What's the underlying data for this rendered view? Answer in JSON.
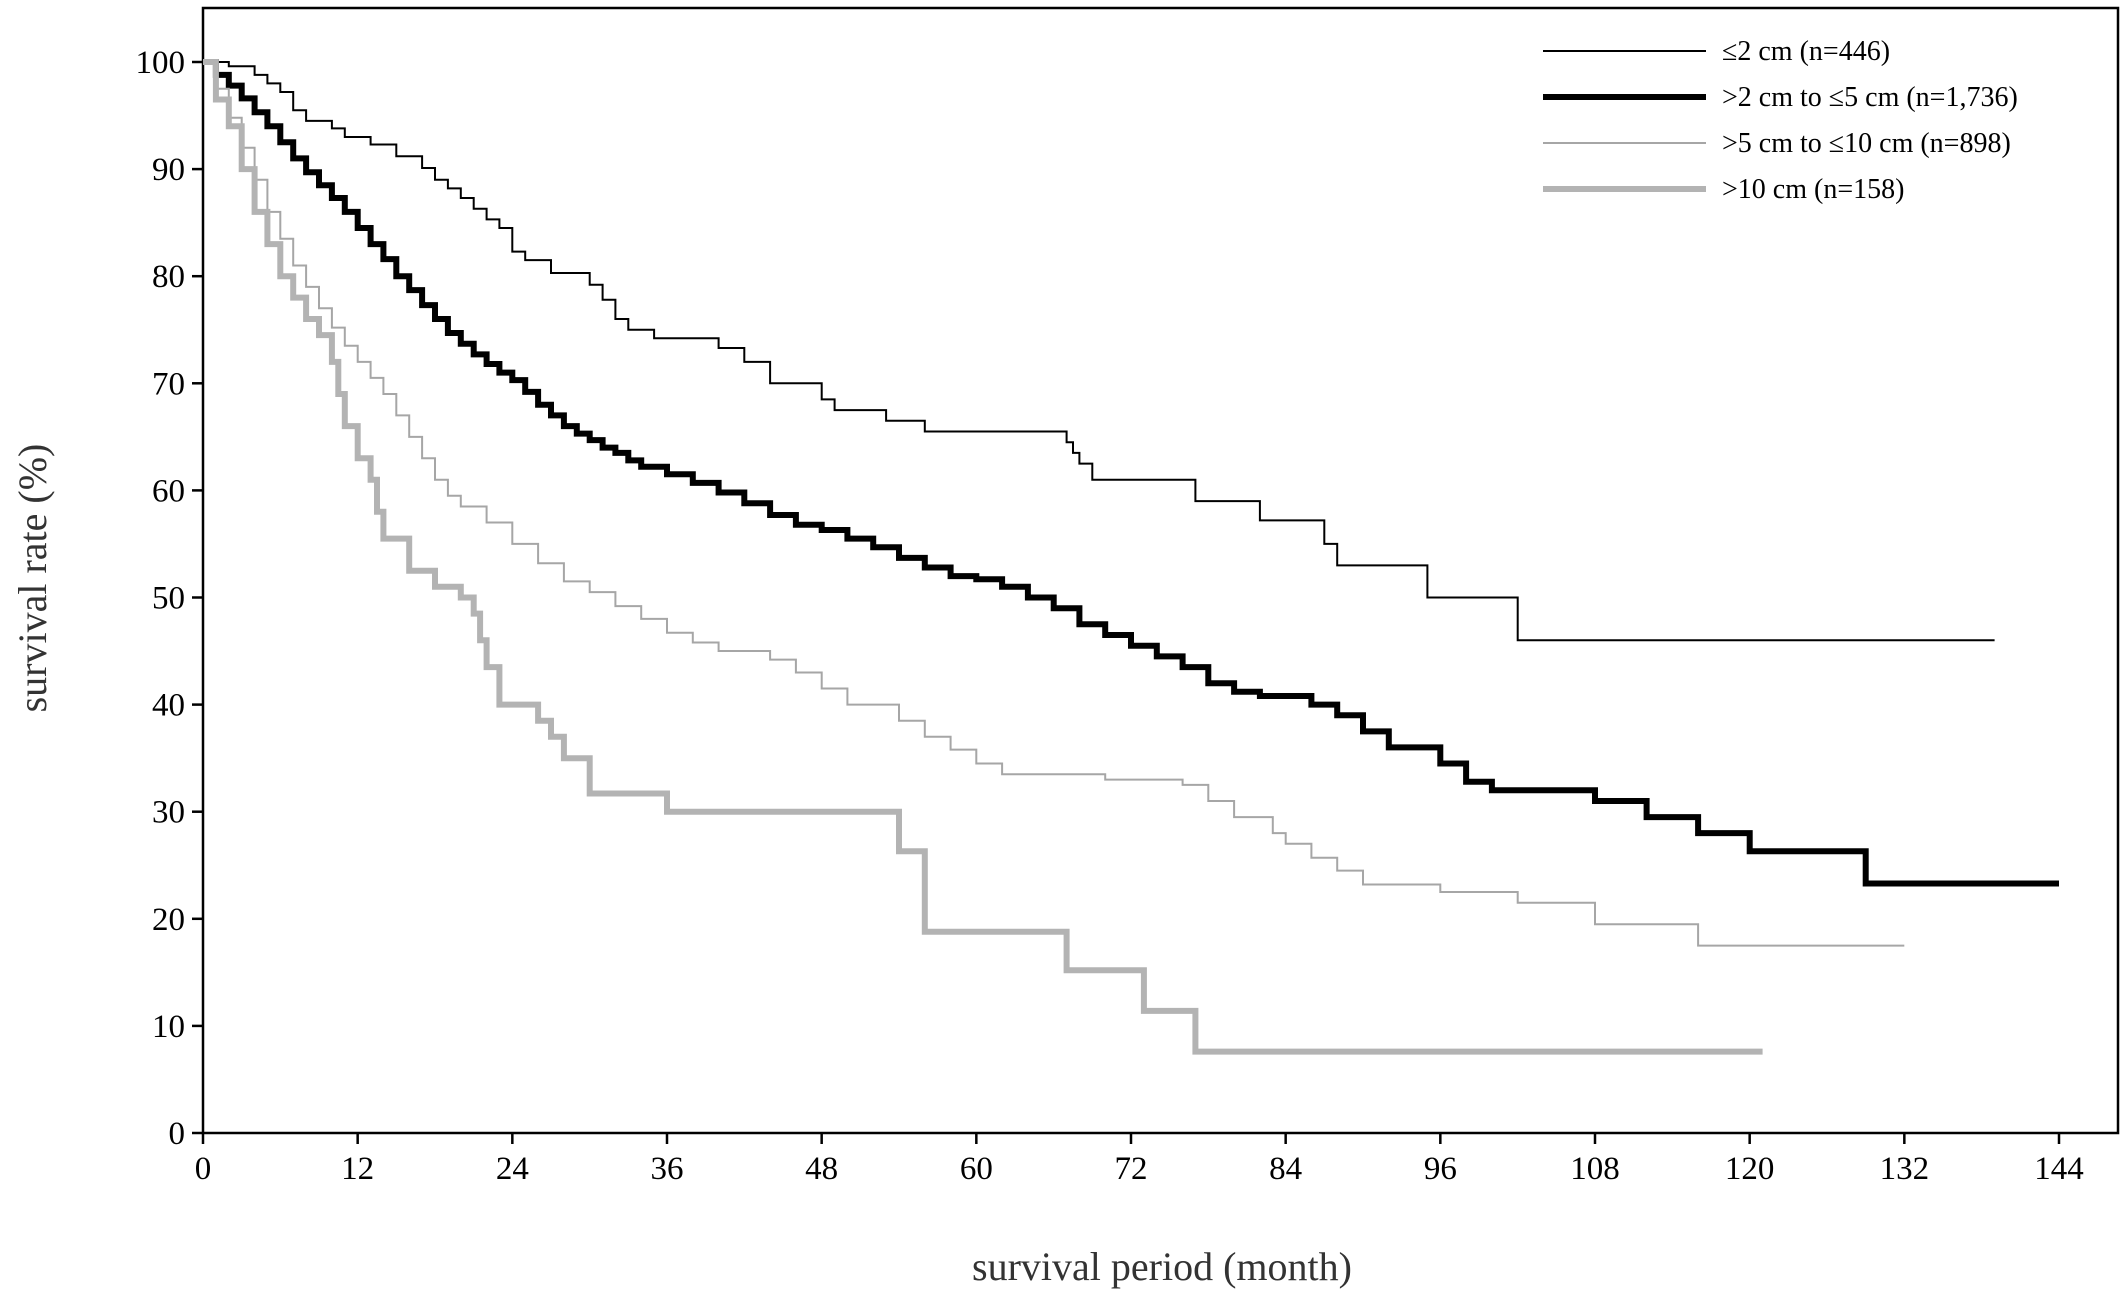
{
  "chart_data": {
    "type": "line",
    "step": true,
    "xlabel": "survival period (month)",
    "ylabel": "survival rate (%)",
    "xlim": [
      0,
      144
    ],
    "ylim": [
      0,
      100
    ],
    "xticks": [
      0,
      12,
      24,
      36,
      48,
      60,
      72,
      84,
      96,
      108,
      120,
      132,
      144
    ],
    "yticks": [
      0,
      10,
      20,
      30,
      40,
      50,
      60,
      70,
      80,
      90,
      100
    ],
    "grid": false,
    "legend_position": "top-right",
    "series": [
      {
        "name": "≤2 cm (n=446)",
        "color": "#000000",
        "weight": "thin",
        "points": [
          [
            0,
            100
          ],
          [
            2,
            99.6
          ],
          [
            4,
            98.8
          ],
          [
            5,
            98
          ],
          [
            6,
            97.2
          ],
          [
            7,
            95.5
          ],
          [
            8,
            94.5
          ],
          [
            10,
            93.8
          ],
          [
            11,
            93
          ],
          [
            13,
            92.3
          ],
          [
            15,
            91.2
          ],
          [
            17,
            90.1
          ],
          [
            18,
            89
          ],
          [
            19,
            88.2
          ],
          [
            20,
            87.3
          ],
          [
            21,
            86.3
          ],
          [
            22,
            85.3
          ],
          [
            23,
            84.5
          ],
          [
            24,
            82.3
          ],
          [
            25,
            81.5
          ],
          [
            27,
            80.3
          ],
          [
            30,
            79.2
          ],
          [
            31,
            77.8
          ],
          [
            32,
            76
          ],
          [
            33,
            75
          ],
          [
            35,
            74.2
          ],
          [
            40,
            73.3
          ],
          [
            42,
            72
          ],
          [
            44,
            70
          ],
          [
            48,
            68.5
          ],
          [
            49,
            67.5
          ],
          [
            53,
            66.5
          ],
          [
            56,
            65.5
          ],
          [
            67,
            64.5
          ],
          [
            67.5,
            63.5
          ],
          [
            68,
            62.5
          ],
          [
            69,
            61
          ],
          [
            77,
            59
          ],
          [
            82,
            57.2
          ],
          [
            87,
            55
          ],
          [
            88,
            53
          ],
          [
            95,
            50
          ],
          [
            102,
            46
          ],
          [
            139,
            46
          ]
        ]
      },
      {
        "name": ">2 cm to ≤5 cm (n=1,736)",
        "color": "#000000",
        "weight": "bold",
        "points": [
          [
            0,
            100
          ],
          [
            1,
            98.8
          ],
          [
            2,
            97.8
          ],
          [
            3,
            96.6
          ],
          [
            4,
            95.3
          ],
          [
            5,
            94
          ],
          [
            6,
            92.5
          ],
          [
            7,
            91
          ],
          [
            8,
            89.7
          ],
          [
            9,
            88.5
          ],
          [
            10,
            87.3
          ],
          [
            11,
            86
          ],
          [
            12,
            84.5
          ],
          [
            13,
            83
          ],
          [
            14,
            81.6
          ],
          [
            15,
            80
          ],
          [
            16,
            78.7
          ],
          [
            17,
            77.3
          ],
          [
            18,
            76
          ],
          [
            19,
            74.7
          ],
          [
            20,
            73.7
          ],
          [
            21,
            72.7
          ],
          [
            22,
            71.8
          ],
          [
            23,
            71
          ],
          [
            24,
            70.3
          ],
          [
            25,
            69.2
          ],
          [
            26,
            68
          ],
          [
            27,
            67
          ],
          [
            28,
            66
          ],
          [
            29,
            65.3
          ],
          [
            30,
            64.7
          ],
          [
            31,
            64
          ],
          [
            32,
            63.5
          ],
          [
            33,
            62.8
          ],
          [
            34,
            62.2
          ],
          [
            36,
            61.5
          ],
          [
            38,
            60.7
          ],
          [
            40,
            59.8
          ],
          [
            42,
            58.8
          ],
          [
            44,
            57.7
          ],
          [
            46,
            56.8
          ],
          [
            48,
            56.3
          ],
          [
            50,
            55.5
          ],
          [
            52,
            54.7
          ],
          [
            54,
            53.7
          ],
          [
            56,
            52.8
          ],
          [
            58,
            52
          ],
          [
            60,
            51.7
          ],
          [
            62,
            51
          ],
          [
            64,
            50
          ],
          [
            66,
            49
          ],
          [
            68,
            47.5
          ],
          [
            70,
            46.5
          ],
          [
            72,
            45.5
          ],
          [
            74,
            44.5
          ],
          [
            76,
            43.5
          ],
          [
            78,
            42
          ],
          [
            80,
            41.2
          ],
          [
            82,
            40.8
          ],
          [
            86,
            40
          ],
          [
            88,
            39
          ],
          [
            90,
            37.5
          ],
          [
            92,
            36
          ],
          [
            96,
            34.5
          ],
          [
            98,
            32.8
          ],
          [
            100,
            32
          ],
          [
            108,
            31
          ],
          [
            112,
            29.5
          ],
          [
            116,
            28
          ],
          [
            120,
            26.3
          ],
          [
            129,
            23.3
          ],
          [
            144,
            23.3
          ]
        ]
      },
      {
        "name": ">5 cm to ≤10 cm (n=898)",
        "color": "#a6a6a6",
        "weight": "thin",
        "points": [
          [
            0,
            100
          ],
          [
            1,
            97.5
          ],
          [
            2,
            94.8
          ],
          [
            3,
            92
          ],
          [
            4,
            89
          ],
          [
            5,
            86
          ],
          [
            6,
            83.5
          ],
          [
            7,
            81
          ],
          [
            8,
            79
          ],
          [
            9,
            77
          ],
          [
            10,
            75.2
          ],
          [
            11,
            73.5
          ],
          [
            12,
            72
          ],
          [
            13,
            70.5
          ],
          [
            14,
            69
          ],
          [
            15,
            67
          ],
          [
            16,
            65
          ],
          [
            17,
            63
          ],
          [
            18,
            61
          ],
          [
            19,
            59.5
          ],
          [
            20,
            58.5
          ],
          [
            22,
            57
          ],
          [
            24,
            55
          ],
          [
            26,
            53.2
          ],
          [
            28,
            51.5
          ],
          [
            30,
            50.5
          ],
          [
            32,
            49.2
          ],
          [
            34,
            48
          ],
          [
            36,
            46.7
          ],
          [
            38,
            45.8
          ],
          [
            40,
            45
          ],
          [
            44,
            44.2
          ],
          [
            46,
            43
          ],
          [
            48,
            41.5
          ],
          [
            50,
            40
          ],
          [
            54,
            38.5
          ],
          [
            56,
            37
          ],
          [
            58,
            35.8
          ],
          [
            60,
            34.5
          ],
          [
            62,
            33.5
          ],
          [
            70,
            33
          ],
          [
            76,
            32.5
          ],
          [
            78,
            31
          ],
          [
            80,
            29.5
          ],
          [
            83,
            28
          ],
          [
            84,
            27
          ],
          [
            86,
            25.7
          ],
          [
            88,
            24.5
          ],
          [
            90,
            23.2
          ],
          [
            96,
            22.5
          ],
          [
            102,
            21.5
          ],
          [
            108,
            19.5
          ],
          [
            116,
            17.5
          ],
          [
            132,
            17.5
          ]
        ]
      },
      {
        "name": ">10 cm (n=158)",
        "color": "#b3b3b3",
        "weight": "bold",
        "points": [
          [
            0,
            100
          ],
          [
            1,
            96.5
          ],
          [
            2,
            94
          ],
          [
            3,
            90
          ],
          [
            4,
            86
          ],
          [
            5,
            83
          ],
          [
            6,
            80
          ],
          [
            7,
            78
          ],
          [
            8,
            76
          ],
          [
            9,
            74.5
          ],
          [
            10,
            72
          ],
          [
            10.5,
            69
          ],
          [
            11,
            66
          ],
          [
            12,
            63
          ],
          [
            13,
            61
          ],
          [
            13.5,
            58
          ],
          [
            14,
            55.5
          ],
          [
            16,
            52.5
          ],
          [
            18,
            51
          ],
          [
            20,
            50
          ],
          [
            21,
            48.5
          ],
          [
            21.5,
            46
          ],
          [
            22,
            43.5
          ],
          [
            23,
            40
          ],
          [
            26,
            38.5
          ],
          [
            27,
            37
          ],
          [
            28,
            35
          ],
          [
            30,
            31.7
          ],
          [
            36,
            30
          ],
          [
            54,
            26.3
          ],
          [
            56,
            18.8
          ],
          [
            67,
            15.2
          ],
          [
            73,
            11.4
          ],
          [
            77,
            7.6
          ],
          [
            121,
            7.6
          ]
        ]
      }
    ]
  }
}
